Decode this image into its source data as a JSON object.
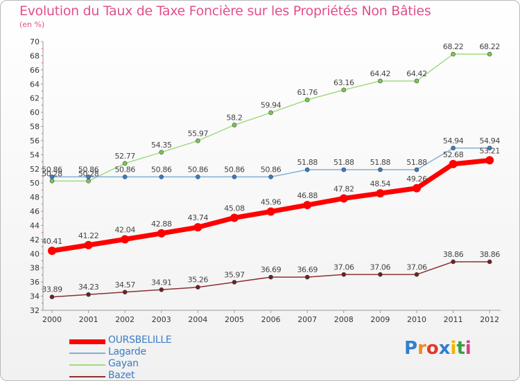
{
  "chart_data": {
    "type": "line",
    "title": "Evolution du Taux de Taxe Foncière sur les Propriétés Non Bâties",
    "subtitle": "(en %)",
    "x": [
      "2000",
      "2001",
      "2002",
      "2003",
      "2004",
      "2005",
      "2006",
      "2007",
      "2008",
      "2009",
      "2010",
      "2011",
      "2012"
    ],
    "ylim": [
      32,
      70
    ],
    "yticks": [
      32,
      34,
      36,
      38,
      40,
      42,
      44,
      46,
      48,
      50,
      52,
      54,
      56,
      58,
      60,
      62,
      64,
      66,
      68,
      70
    ],
    "grid": false,
    "legend_position": "bottom-left",
    "series": [
      {
        "name": "OURSBELILLE",
        "color": "#ff0000",
        "marker": "#ff0000",
        "width": 7,
        "radius": 6,
        "values": [
          40.41,
          41.22,
          42.04,
          42.88,
          43.74,
          45.08,
          45.96,
          46.88,
          47.82,
          48.54,
          49.26,
          52.68,
          53.21
        ],
        "labels": [
          "40.41",
          "41.22",
          "42.04",
          "42.88",
          "43.74",
          "45.08",
          "45.96",
          "46.88",
          "47.82",
          "48.54",
          "49.26",
          "52.68",
          "53.21"
        ]
      },
      {
        "name": "Lagarde",
        "color": "#80b0d8",
        "marker": "#3a7cc4",
        "width": 1.5,
        "radius": 3,
        "values": [
          50.86,
          50.86,
          50.86,
          50.86,
          50.86,
          50.86,
          50.86,
          51.88,
          51.88,
          51.88,
          51.88,
          54.94,
          54.94
        ],
        "labels": [
          "50.86",
          "50.86",
          "50.86",
          "50.86",
          "50.86",
          "50.86",
          "50.86",
          "51.88",
          "51.88",
          "51.88",
          "51.88",
          "54.94",
          "54.94"
        ]
      },
      {
        "name": "Gayan",
        "color": "#a0dc80",
        "marker": "#78c850",
        "width": 1.5,
        "radius": 3,
        "values": [
          50.28,
          50.28,
          52.77,
          54.35,
          55.97,
          58.2,
          59.94,
          61.76,
          63.16,
          64.42,
          64.42,
          68.22,
          68.22
        ],
        "labels": [
          "50.28",
          "50.28",
          "52.77",
          "54.35",
          "55.97",
          "58.2",
          "59.94",
          "61.76",
          "63.16",
          "64.42",
          "64.42",
          "68.22",
          "68.22"
        ]
      },
      {
        "name": "Bazet",
        "color": "#8a3030",
        "marker": "#6e2020",
        "width": 1.5,
        "radius": 3,
        "values": [
          33.89,
          34.23,
          34.57,
          34.91,
          35.26,
          35.97,
          36.69,
          36.69,
          37.06,
          37.06,
          37.06,
          38.86,
          38.86
        ],
        "labels": [
          "33.89",
          "34.23",
          "34.57",
          "34.91",
          "35.26",
          "35.97",
          "36.69",
          "36.69",
          "37.06",
          "37.06",
          "37.06",
          "38.86",
          "38.86"
        ]
      }
    ]
  },
  "logo": {
    "text": "Proxiti",
    "letters": [
      {
        "ch": "P",
        "color": "#2f7fd0"
      },
      {
        "ch": "r",
        "color": "#f08a20"
      },
      {
        "ch": "o",
        "color": "#e03a2a"
      },
      {
        "ch": "x",
        "color": "#2f7fd0"
      },
      {
        "ch": "i",
        "color": "#f0b400"
      },
      {
        "ch": "t",
        "color": "#3aa040"
      },
      {
        "ch": "i",
        "color": "#e03a8a"
      }
    ]
  }
}
